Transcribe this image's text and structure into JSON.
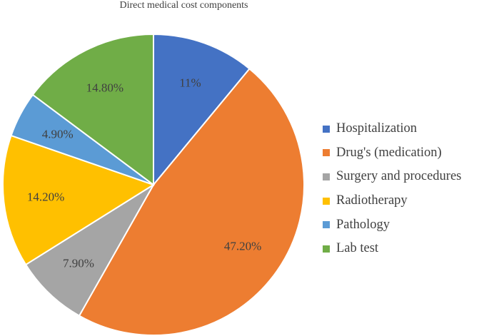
{
  "chart_data": {
    "type": "pie",
    "title": "Direct medical cost components",
    "start_angle_deg": 0,
    "direction": "clockwise",
    "slices": [
      {
        "name": "Hospitalization",
        "value": 11.0,
        "label": "11%",
        "color": "#4472C4"
      },
      {
        "name": "Drug's (medication)",
        "value": 47.2,
        "label": "47.20%",
        "color": "#ED7D31"
      },
      {
        "name": "Surgery and procedures",
        "value": 7.9,
        "label": "7.90%",
        "color": "#A5A5A5"
      },
      {
        "name": "Radiotherapy",
        "value": 14.2,
        "label": "14.20%",
        "color": "#FFC000"
      },
      {
        "name": "Pathology",
        "value": 4.9,
        "label": "4.90%",
        "color": "#5B9BD5"
      },
      {
        "name": "Lab test",
        "value": 14.8,
        "label": "14.80%",
        "color": "#70AD47"
      }
    ],
    "legend_position": "right"
  }
}
